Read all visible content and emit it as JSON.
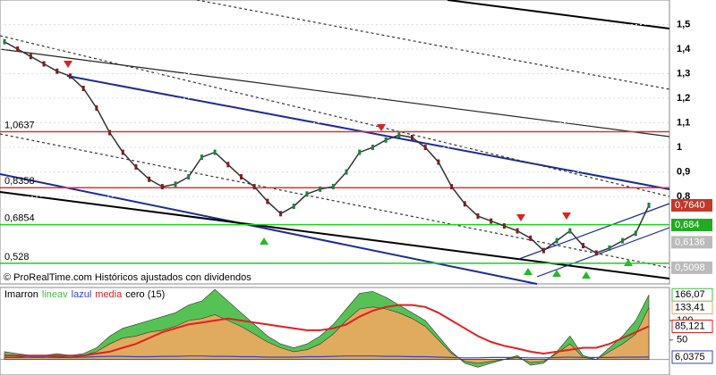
{
  "chart_data": [
    {
      "type": "line",
      "subtitle": "© ProRealTime.com Históricos ajustados con dividendos",
      "color": "#333333",
      "values": [
        1.43,
        1.4,
        1.37,
        1.34,
        1.31,
        1.29,
        1.24,
        1.16,
        1.06,
        0.98,
        0.92,
        0.87,
        0.84,
        0.85,
        0.88,
        0.96,
        0.98,
        0.93,
        0.88,
        0.84,
        0.78,
        0.73,
        0.76,
        0.81,
        0.83,
        0.84,
        0.9,
        0.98,
        1.0,
        1.03,
        1.05,
        1.04,
        1.0,
        0.94,
        0.84,
        0.77,
        0.72,
        0.7,
        0.68,
        0.66,
        0.63,
        0.58,
        0.62,
        0.66,
        0.6,
        0.57,
        0.59,
        0.62,
        0.65,
        0.764
      ],
      "ylim": [
        0.444,
        1.6
      ],
      "yticks": [
        {
          "value": 1.5,
          "label": "1,5"
        },
        {
          "value": 1.4,
          "label": "1,4"
        },
        {
          "value": 1.3,
          "label": "1,3"
        },
        {
          "value": 1.2,
          "label": "1,2"
        },
        {
          "value": 1.1,
          "label": "1,1"
        },
        1,
        {
          "value": 0.9,
          "label": "0,9"
        },
        {
          "value": 0.8,
          "label": "0,8"
        }
      ],
      "grid": true,
      "levels": [
        {
          "value": 1.0637,
          "label": "1,0637",
          "color": "#e03030"
        },
        {
          "value": 0.8358,
          "label": "0,8358",
          "color": "#e03030"
        },
        {
          "value": 0.6854,
          "label": "0,6854",
          "color": "#22cc22"
        },
        {
          "value": 0.528,
          "label": "0,528",
          "color": "#22cc22"
        }
      ],
      "price_tags": [
        {
          "value": 0.764,
          "label": "0,7640",
          "color": "#c0392b"
        },
        {
          "value": 0.684,
          "label": "0,684",
          "color": "#22aa22"
        },
        {
          "value": 0.6136,
          "label": "0,6136",
          "color": "#bbbbbb"
        },
        {
          "value": 0.5098,
          "label": "0,5098",
          "color": "#bbbbbb"
        }
      ]
    },
    {
      "type": "area",
      "legend_suffix": "cero (15)",
      "ylim": [
        -40,
        185
      ],
      "yticks": [
        50,
        100
      ],
      "series": [
        {
          "name": "lineav",
          "color": "#44bb44",
          "values": [
            20,
            15,
            10,
            10,
            15,
            10,
            15,
            30,
            60,
            80,
            90,
            100,
            110,
            120,
            140,
            150,
            180,
            150,
            120,
            90,
            60,
            40,
            30,
            40,
            60,
            90,
            130,
            170,
            175,
            160,
            140,
            120,
            100,
            60,
            20,
            -10,
            -20,
            -10,
            0,
            10,
            -15,
            -10,
            20,
            60,
            10,
            0,
            30,
            60,
            100,
            166.07
          ],
          "last_label": "166,07"
        },
        {
          "name": "Imarron",
          "color": "#f0a860",
          "values": [
            10,
            8,
            5,
            5,
            8,
            5,
            10,
            20,
            40,
            55,
            60,
            70,
            75,
            85,
            100,
            105,
            115,
            100,
            85,
            65,
            45,
            30,
            20,
            25,
            40,
            65,
            100,
            130,
            135,
            130,
            120,
            105,
            85,
            50,
            15,
            -5,
            -10,
            -5,
            0,
            5,
            -8,
            -5,
            15,
            40,
            5,
            0,
            20,
            40,
            65,
            133.41
          ],
          "last_label": "133,41"
        },
        {
          "name": "media",
          "color": "#e02020",
          "values": [
            10,
            10,
            10,
            10,
            10,
            10,
            10,
            15,
            20,
            30,
            40,
            55,
            70,
            80,
            90,
            95,
            100,
            105,
            100,
            95,
            90,
            85,
            80,
            75,
            75,
            80,
            90,
            110,
            125,
            135,
            140,
            140,
            135,
            120,
            100,
            80,
            60,
            45,
            35,
            28,
            20,
            15,
            20,
            25,
            30,
            30,
            40,
            55,
            70,
            85.121
          ],
          "last_label": "85,121"
        },
        {
          "name": "lazul",
          "color": "#3344cc",
          "values": [
            5,
            5,
            6,
            6,
            5,
            5,
            6,
            7,
            8,
            8,
            7,
            7,
            8,
            8,
            9,
            9,
            8,
            8,
            7,
            7,
            6,
            6,
            6,
            7,
            7,
            8,
            9,
            9,
            9,
            8,
            8,
            7,
            7,
            6,
            5,
            4,
            4,
            5,
            5,
            5,
            4,
            4,
            5,
            6,
            5,
            5,
            5,
            6,
            6,
            6.0375
          ],
          "last_label": "6,0375"
        }
      ]
    }
  ]
}
